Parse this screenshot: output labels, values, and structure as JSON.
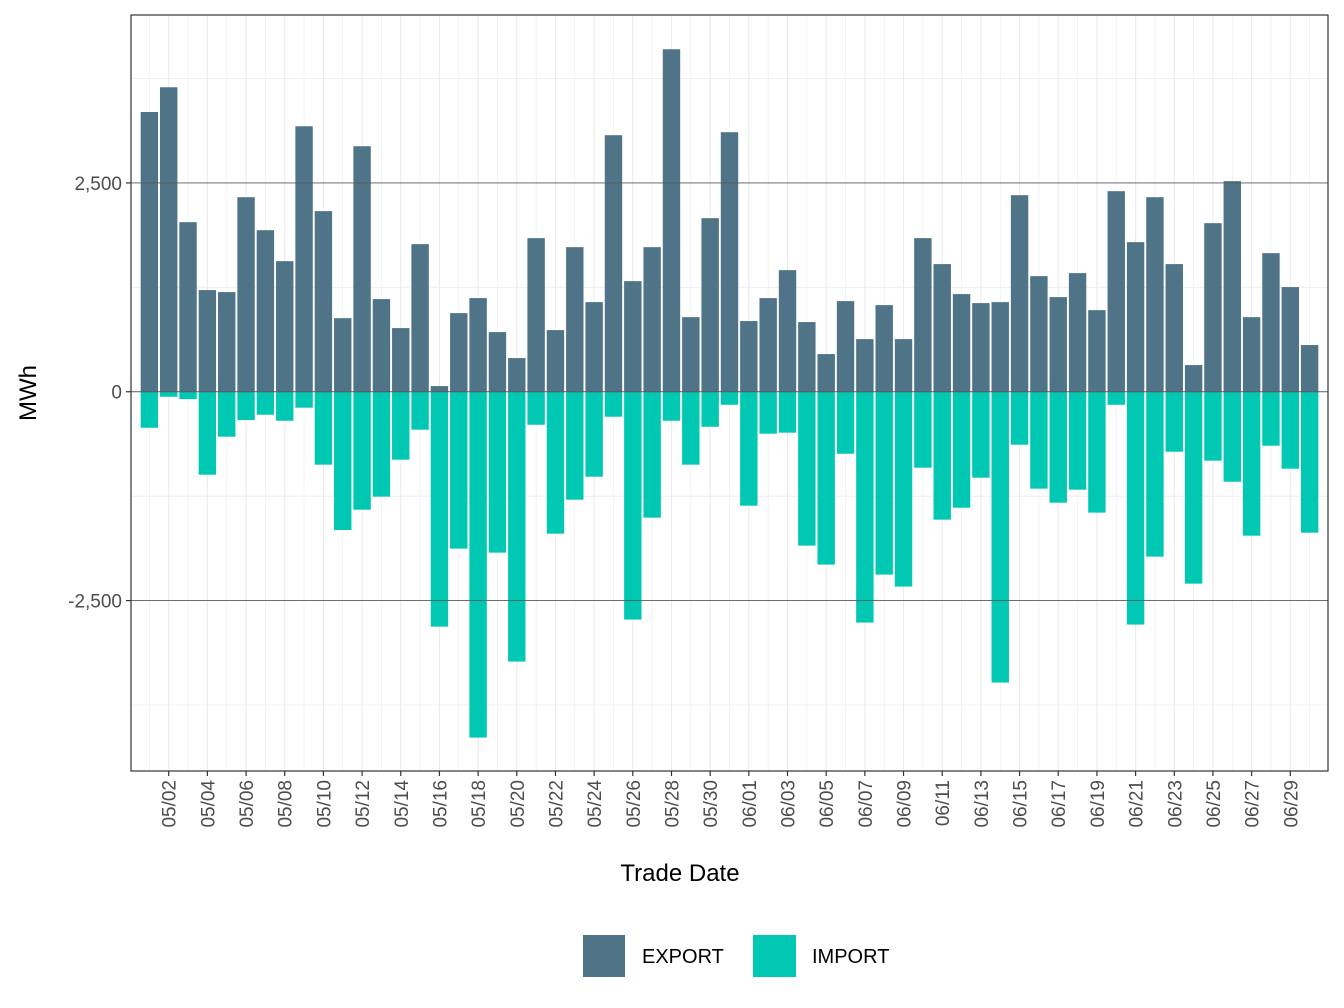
{
  "chart_data": {
    "type": "bar",
    "title": "",
    "xlabel": "Trade Date",
    "ylabel": "MWh",
    "ylim": [
      -4540,
      4510
    ],
    "yticks": [
      -2500,
      0,
      2500
    ],
    "ytick_labels": [
      "-2,500",
      "0",
      "2,500"
    ],
    "grid": true,
    "legend_position": "bottom",
    "categories": [
      "05/01",
      "05/02",
      "05/03",
      "05/04",
      "05/05",
      "05/06",
      "05/07",
      "05/08",
      "05/09",
      "05/10",
      "05/11",
      "05/12",
      "05/13",
      "05/14",
      "05/15",
      "05/16",
      "05/17",
      "05/18",
      "05/19",
      "05/20",
      "05/21",
      "05/22",
      "05/23",
      "05/24",
      "05/25",
      "05/26",
      "05/27",
      "05/28",
      "05/29",
      "05/30",
      "05/31",
      "06/01",
      "06/02",
      "06/03",
      "06/04",
      "06/05",
      "06/06",
      "06/07",
      "06/08",
      "06/09",
      "06/10",
      "06/11",
      "06/12",
      "06/13",
      "06/14",
      "06/15",
      "06/16",
      "06/17",
      "06/18",
      "06/19",
      "06/20",
      "06/21",
      "06/22",
      "06/23",
      "06/24",
      "06/25",
      "06/26",
      "06/27",
      "06/28",
      "06/29",
      "06/30"
    ],
    "xtick_labels": [
      "05/02",
      "05/04",
      "05/06",
      "05/08",
      "05/10",
      "05/12",
      "05/14",
      "05/16",
      "05/18",
      "05/20",
      "05/22",
      "05/24",
      "05/26",
      "05/28",
      "05/30",
      "06/01",
      "06/03",
      "06/05",
      "06/07",
      "06/09",
      "06/11",
      "06/13",
      "06/15",
      "06/17",
      "06/19",
      "06/21",
      "06/23",
      "06/25",
      "06/27",
      "06/29"
    ],
    "series": [
      {
        "name": "EXPORT",
        "color": "#4f7387",
        "values": [
          3349,
          3645,
          2030,
          1217,
          1193,
          2329,
          1934,
          1563,
          3178,
          2162,
          881,
          2939,
          1109,
          762,
          1767,
          68,
          941,
          1121,
          714,
          403,
          1839,
          738,
          1731,
          1073,
          3071,
          1324,
          1731,
          4100,
          893,
          2078,
          3107,
          846,
          1121,
          1456,
          834,
          451,
          1085,
          630,
          1037,
          630,
          1839,
          1528,
          1169,
          1061,
          1073,
          2353,
          1384,
          1133,
          1420,
          977,
          2401,
          1791,
          2329,
          1528,
          319,
          2018,
          2521,
          893,
          1659,
          1253,
          559
        ]
      },
      {
        "name": "IMPORT",
        "color": "#00c8b3",
        "values": [
          -431,
          -60,
          -88,
          -993,
          -538,
          -339,
          -275,
          -347,
          -191,
          -873,
          -1655,
          -1412,
          -1256,
          -813,
          -454,
          -2812,
          -1878,
          -4140,
          -1926,
          -3230,
          -395,
          -1699,
          -1292,
          -1017,
          -299,
          -2727,
          -1507,
          -347,
          -873,
          -419,
          -156,
          -1364,
          -502,
          -490,
          -1842,
          -2069,
          -742,
          -2763,
          -2189,
          -2332,
          -909,
          -1531,
          -1388,
          -1029,
          -3481,
          -634,
          -1160,
          -1328,
          -1172,
          -1447,
          -156,
          -2787,
          -1974,
          -718,
          -2297,
          -825,
          -1077,
          -1723,
          -646,
          -921,
          -1687
        ]
      }
    ]
  }
}
